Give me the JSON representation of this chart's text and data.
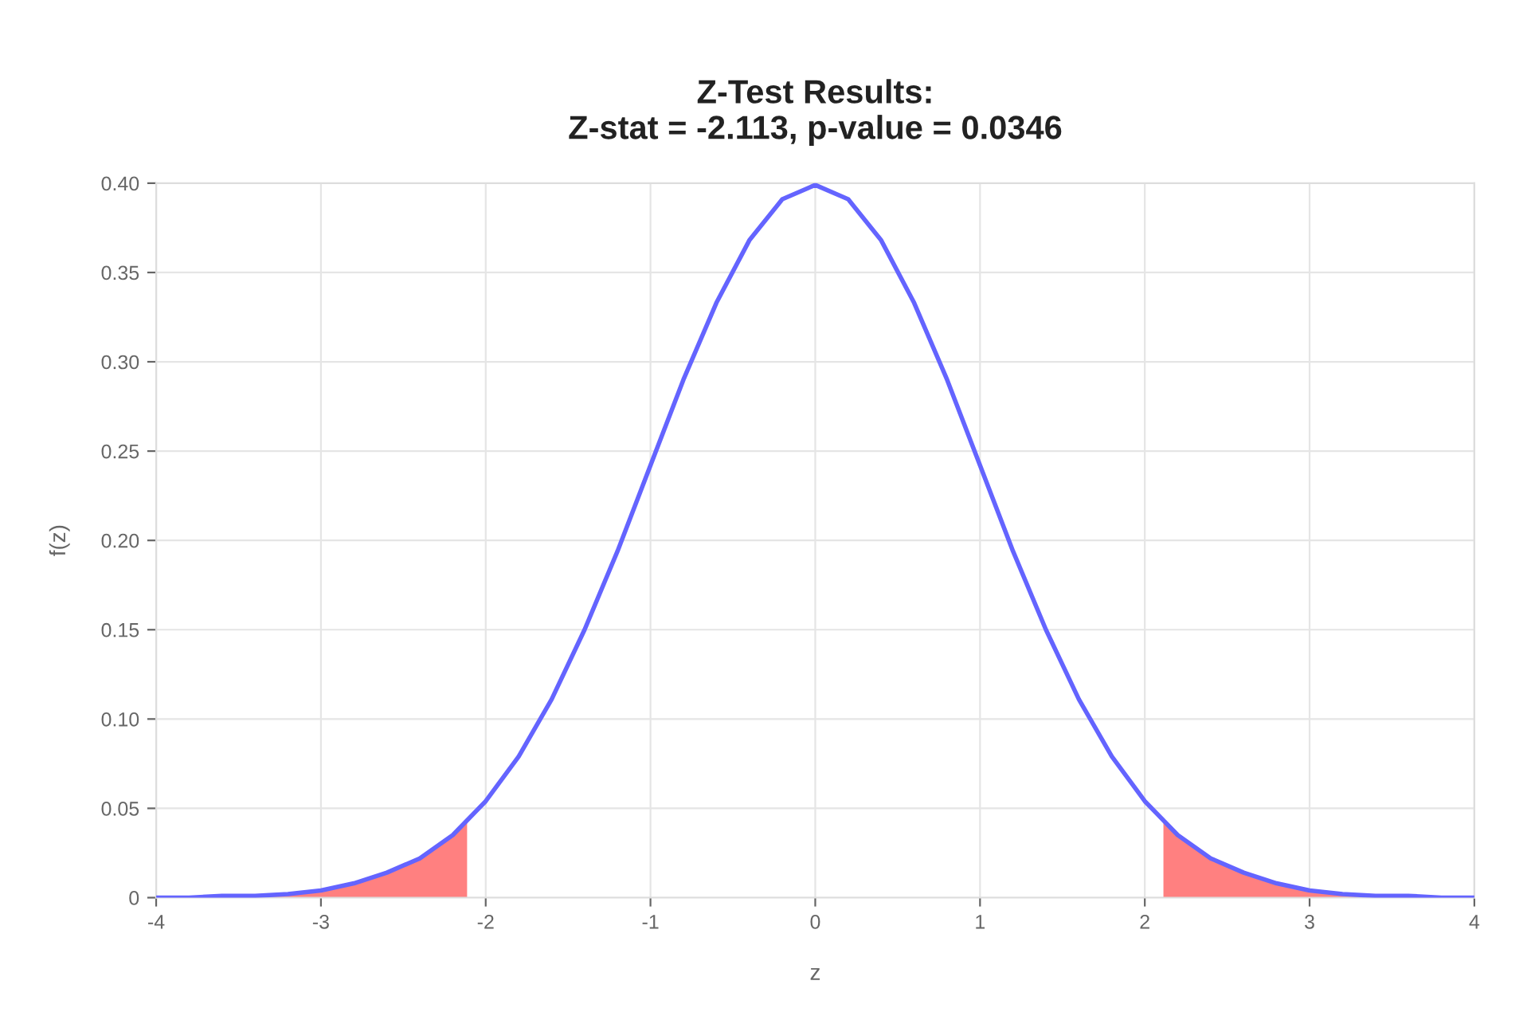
{
  "chart_data": {
    "type": "line",
    "title": "Z-Test Results:\nZ-stat = -2.113, p-value = 0.0346",
    "xlabel": "z",
    "ylabel": "f(z)",
    "series": [
      {
        "type": "area",
        "color": "#ff8080",
        "x": [
          -4,
          -3.8,
          -3.6,
          -3.4,
          -3.2,
          -3,
          -2.8,
          -2.6,
          -2.4,
          -2.2,
          -2.113
        ],
        "values": [
          0.0,
          0.0,
          0.001,
          0.001,
          0.002,
          0.004,
          0.008,
          0.014,
          0.022,
          0.035,
          0.043
        ]
      },
      {
        "type": "area",
        "color": "#ff8080",
        "x": [
          2.113,
          2.2,
          2.4,
          2.6,
          2.8,
          3,
          3.2,
          3.4,
          3.6,
          3.8,
          4
        ],
        "values": [
          0.043,
          0.035,
          0.022,
          0.014,
          0.008,
          0.004,
          0.002,
          0.001,
          0.001,
          0.0,
          0.0
        ]
      },
      {
        "color": "#6464ff",
        "x": [
          -4,
          -3.8,
          -3.6,
          -3.4,
          -3.2,
          -3,
          -2.8,
          -2.6,
          -2.4,
          -2.2,
          -2,
          -1.8,
          -1.6,
          -1.4,
          -1.2,
          -1,
          -0.8,
          -0.6,
          -0.4,
          -0.2,
          0,
          0.2,
          0.4,
          0.6,
          0.8,
          1,
          1.2,
          1.4,
          1.6,
          1.8,
          2,
          2.2,
          2.4,
          2.6,
          2.8,
          3,
          3.2,
          3.4,
          3.6,
          3.8,
          4
        ],
        "values": [
          0.0,
          0.0,
          0.001,
          0.001,
          0.002,
          0.004,
          0.008,
          0.014,
          0.022,
          0.035,
          0.054,
          0.079,
          0.111,
          0.15,
          0.194,
          0.242,
          0.29,
          0.333,
          0.368,
          0.391,
          0.399,
          0.391,
          0.368,
          0.333,
          0.29,
          0.242,
          0.194,
          0.15,
          0.111,
          0.079,
          0.054,
          0.035,
          0.022,
          0.014,
          0.008,
          0.004,
          0.002,
          0.001,
          0.001,
          0.0,
          0.0
        ]
      }
    ],
    "xlim": [
      -4,
      4
    ],
    "xticks": [
      -4,
      -3,
      -2,
      -1,
      0,
      1,
      2,
      3,
      4
    ],
    "ylim": [
      0,
      0.4
    ],
    "yticks": [
      0,
      0.05,
      {
        "value": 0.1,
        "label": "0.10"
      },
      0.15,
      {
        "value": 0.2,
        "label": "0.20"
      },
      0.25,
      {
        "value": 0.3,
        "label": "0.30"
      },
      0.35,
      {
        "value": 0.4,
        "label": "0.40"
      }
    ],
    "grid": true
  }
}
